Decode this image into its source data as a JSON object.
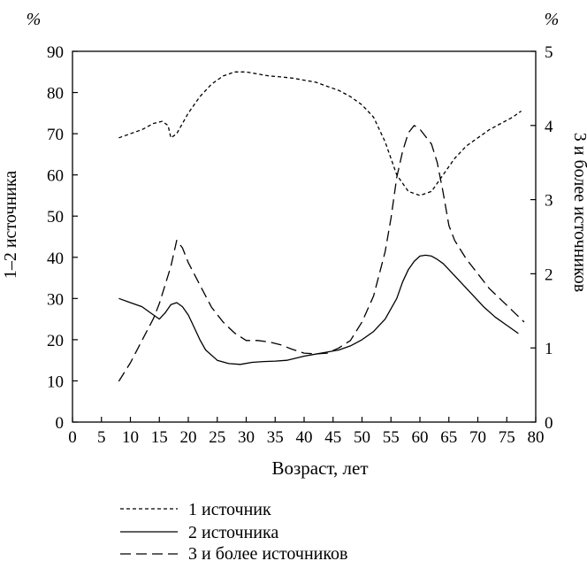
{
  "chart_data": {
    "type": "line",
    "title": "",
    "xlabel": "Возраст, лет",
    "ylabel_left": "1–2 источника",
    "ylabel_right": "3 и более источников",
    "left_unit": "%",
    "right_unit": "%",
    "xlim": [
      0,
      80
    ],
    "ylim_left": [
      0,
      90
    ],
    "ylim_right": [
      0,
      5
    ],
    "x_ticks": [
      "0",
      "5",
      "10",
      "15",
      "20",
      "25",
      "30",
      "35",
      "40",
      "45",
      "50",
      "55",
      "60",
      "65",
      "70",
      "75",
      "80"
    ],
    "y_left_ticks": [
      "0",
      "10",
      "20",
      "30",
      "40",
      "50",
      "60",
      "70",
      "80",
      "90"
    ],
    "y_right_ticks": [
      "0",
      "1",
      "2",
      "3",
      "4",
      "5"
    ],
    "grid": false,
    "legend_position": "bottom-center",
    "series": [
      {
        "name": "1 источник",
        "axis": "left",
        "style": "dotted-dash",
        "x": [
          8,
          10,
          12,
          14,
          15.5,
          16.5,
          17,
          18,
          19,
          20,
          22,
          24,
          26,
          28,
          30,
          32,
          34,
          36,
          38,
          40,
          42,
          44,
          46,
          48,
          50,
          52,
          54,
          56,
          58,
          60,
          62,
          64,
          66,
          68,
          70,
          72,
          74,
          76,
          77.5
        ],
        "y": [
          69,
          70,
          71,
          72.5,
          73,
          72,
          69,
          70,
          72.5,
          75,
          79,
          82,
          84,
          85,
          85,
          84.5,
          84,
          83.8,
          83.5,
          83,
          82.5,
          81.5,
          80.5,
          79,
          77,
          74,
          68,
          60,
          56,
          55,
          56,
          60,
          64,
          67,
          69,
          71,
          72.5,
          74,
          75.5
        ]
      },
      {
        "name": "2 источника",
        "axis": "left",
        "style": "solid",
        "x": [
          8,
          10,
          12,
          14,
          15,
          16,
          17,
          18,
          19,
          20,
          21,
          22,
          23,
          25,
          27,
          29,
          31,
          33,
          35,
          37,
          40,
          42,
          44,
          46,
          48,
          50,
          52,
          54,
          56,
          57,
          58,
          59,
          60,
          61,
          62,
          63,
          64,
          65,
          67,
          69,
          71,
          73,
          75,
          77
        ],
        "y": [
          30,
          29,
          28,
          26,
          25,
          26.5,
          28.5,
          29,
          28,
          26,
          23,
          20,
          17.5,
          15,
          14.2,
          14,
          14.5,
          14.7,
          14.8,
          15,
          16,
          16.5,
          17,
          17.5,
          18.5,
          20,
          22,
          25,
          30,
          34,
          37,
          39,
          40.3,
          40.5,
          40.3,
          39.5,
          38.5,
          37,
          34,
          31,
          28,
          25.5,
          23.5,
          21.5
        ]
      },
      {
        "name": "3 и более источников",
        "axis": "right",
        "style": "dashed",
        "x": [
          8,
          10,
          12,
          14,
          15,
          16,
          17,
          18,
          19,
          20,
          22,
          24,
          26,
          28,
          30,
          32,
          34,
          36,
          38,
          40,
          42,
          44,
          46,
          48,
          50,
          52,
          54,
          55,
          56,
          57,
          58,
          59,
          60,
          61,
          62,
          63,
          64,
          65,
          66,
          68,
          70,
          72,
          74,
          76,
          78
        ],
        "y": [
          0.55,
          0.8,
          1.1,
          1.4,
          1.6,
          1.85,
          2.1,
          2.45,
          2.35,
          2.15,
          1.85,
          1.55,
          1.35,
          1.2,
          1.1,
          1.1,
          1.08,
          1.04,
          0.98,
          0.93,
          0.92,
          0.93,
          1.0,
          1.1,
          1.35,
          1.7,
          2.3,
          2.75,
          3.3,
          3.65,
          3.9,
          4.0,
          3.95,
          3.85,
          3.75,
          3.5,
          3.1,
          2.65,
          2.45,
          2.2,
          2.0,
          1.8,
          1.65,
          1.5,
          1.35
        ]
      }
    ]
  }
}
